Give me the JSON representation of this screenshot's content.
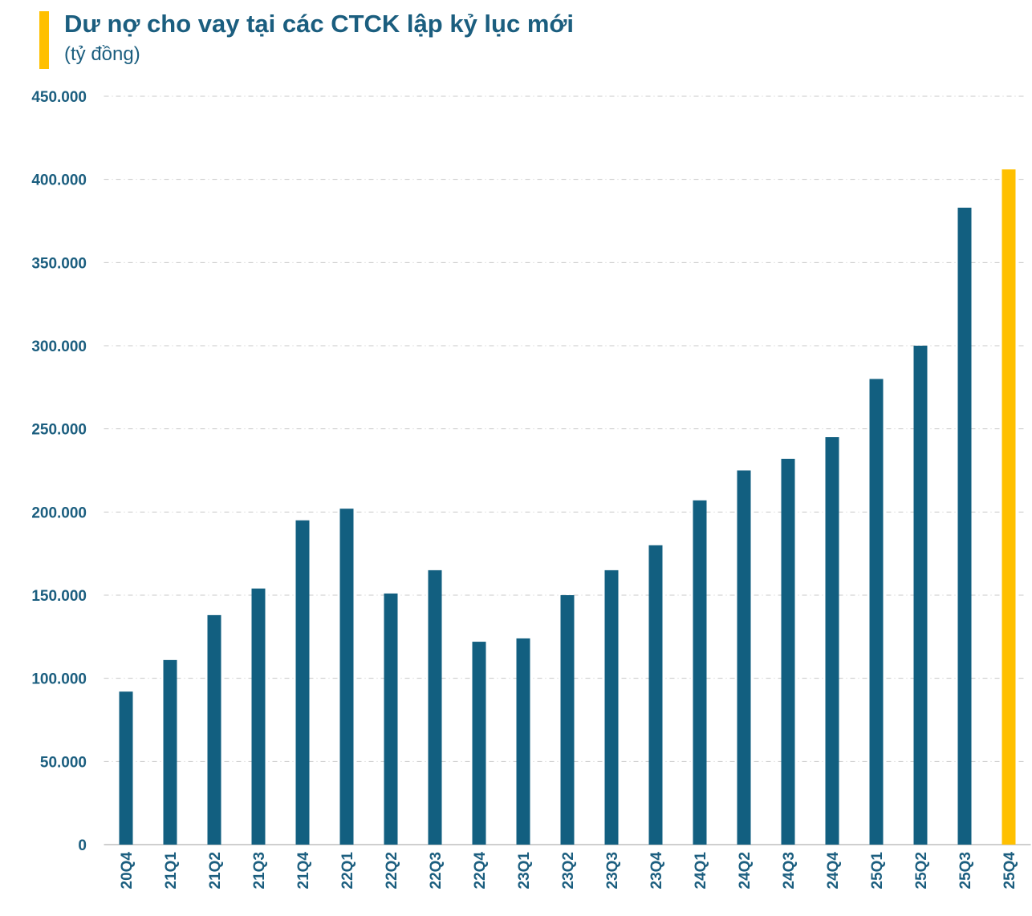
{
  "chart_data": {
    "type": "bar",
    "title": "Dư nợ cho vay tại các CTCK lập kỷ lục mới",
    "subtitle": "(tỷ đồng)",
    "categories": [
      "20Q4",
      "21Q1",
      "21Q2",
      "21Q3",
      "21Q4",
      "22Q1",
      "22Q2",
      "22Q3",
      "22Q4",
      "23Q1",
      "23Q2",
      "23Q3",
      "23Q4",
      "24Q1",
      "24Q2",
      "24Q3",
      "24Q4",
      "25Q1",
      "25Q2",
      "25Q3",
      "25Q4"
    ],
    "values": [
      92000,
      111000,
      138000,
      154000,
      195000,
      202000,
      151000,
      165000,
      122000,
      124000,
      150000,
      165000,
      180000,
      207000,
      225000,
      232000,
      245000,
      280000,
      300000,
      383000,
      406000
    ],
    "ylim": [
      0,
      450000
    ],
    "yticks": [
      0,
      50000,
      100000,
      150000,
      200000,
      250000,
      300000,
      350000,
      400000,
      450000
    ],
    "ytick_labels": [
      "0",
      "50.000",
      "100.000",
      "150.000",
      "200.000",
      "250.000",
      "300.000",
      "350.000",
      "400.000",
      "450.000"
    ],
    "grid": true,
    "colors": {
      "bar": "#125F80",
      "highlight": "#FFC000",
      "text": "#1B5E7F",
      "grid": "#C8C8C8",
      "accent": "#FFC000"
    },
    "highlight_category": "25Q4"
  }
}
